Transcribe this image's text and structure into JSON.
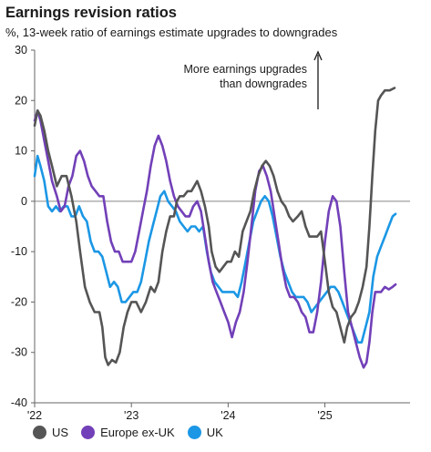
{
  "chart_data": {
    "type": "line",
    "title": "Earnings revision ratios",
    "subtitle": "%, 13-week ratio of earnings estimate upgrades to downgrades",
    "ylim": [
      -40,
      30
    ],
    "xlim": [
      2022.0,
      2025.88
    ],
    "yticks": [
      30,
      20,
      10,
      0,
      -10,
      -20,
      -30,
      -40
    ],
    "xticks": [
      {
        "label": "'22",
        "value": 2022.0
      },
      {
        "label": "'23",
        "value": 2023.0
      },
      {
        "label": "'24",
        "value": 2024.0
      },
      {
        "label": "'25",
        "value": 2025.0
      }
    ],
    "annotation": {
      "line1": "More earnings upgrades",
      "line2": "than downgrades"
    },
    "legend_position": "bottom",
    "series": [
      {
        "name": "US",
        "color": "#555555",
        "points": [
          [
            2022.0,
            15
          ],
          [
            2022.03,
            18
          ],
          [
            2022.06,
            17
          ],
          [
            2022.1,
            14
          ],
          [
            2022.14,
            10
          ],
          [
            2022.18,
            7
          ],
          [
            2022.23,
            3
          ],
          [
            2022.28,
            5
          ],
          [
            2022.33,
            5
          ],
          [
            2022.38,
            1
          ],
          [
            2022.43,
            -4
          ],
          [
            2022.47,
            -10
          ],
          [
            2022.52,
            -17
          ],
          [
            2022.57,
            -20
          ],
          [
            2022.62,
            -22
          ],
          [
            2022.67,
            -22
          ],
          [
            2022.7,
            -25
          ],
          [
            2022.73,
            -31
          ],
          [
            2022.76,
            -32.5
          ],
          [
            2022.8,
            -31.5
          ],
          [
            2022.84,
            -32
          ],
          [
            2022.88,
            -30
          ],
          [
            2022.92,
            -25
          ],
          [
            2022.96,
            -22
          ],
          [
            2023.0,
            -20
          ],
          [
            2023.05,
            -20
          ],
          [
            2023.1,
            -22
          ],
          [
            2023.15,
            -20
          ],
          [
            2023.2,
            -17
          ],
          [
            2023.24,
            -18
          ],
          [
            2023.28,
            -16
          ],
          [
            2023.32,
            -10
          ],
          [
            2023.36,
            -6
          ],
          [
            2023.4,
            -3
          ],
          [
            2023.44,
            -3
          ],
          [
            2023.47,
            0
          ],
          [
            2023.5,
            1
          ],
          [
            2023.54,
            1
          ],
          [
            2023.58,
            2
          ],
          [
            2023.62,
            2
          ],
          [
            2023.65,
            3
          ],
          [
            2023.68,
            4
          ],
          [
            2023.72,
            2
          ],
          [
            2023.76,
            -1
          ],
          [
            2023.8,
            -5
          ],
          [
            2023.83,
            -10
          ],
          [
            2023.87,
            -13
          ],
          [
            2023.91,
            -14
          ],
          [
            2023.95,
            -13
          ],
          [
            2023.99,
            -12
          ],
          [
            2024.03,
            -12
          ],
          [
            2024.07,
            -10
          ],
          [
            2024.11,
            -11
          ],
          [
            2024.15,
            -6
          ],
          [
            2024.19,
            -4
          ],
          [
            2024.23,
            -2
          ],
          [
            2024.27,
            2
          ],
          [
            2024.31,
            5
          ],
          [
            2024.35,
            7
          ],
          [
            2024.39,
            8
          ],
          [
            2024.43,
            7
          ],
          [
            2024.47,
            5
          ],
          [
            2024.51,
            2
          ],
          [
            2024.55,
            0
          ],
          [
            2024.59,
            -1
          ],
          [
            2024.63,
            -3
          ],
          [
            2024.67,
            -4
          ],
          [
            2024.72,
            -3
          ],
          [
            2024.76,
            -2
          ],
          [
            2024.8,
            -5
          ],
          [
            2024.84,
            -7
          ],
          [
            2024.88,
            -7
          ],
          [
            2024.92,
            -7
          ],
          [
            2024.96,
            -6
          ],
          [
            2025.0,
            -12
          ],
          [
            2025.04,
            -18
          ],
          [
            2025.08,
            -21
          ],
          [
            2025.12,
            -22
          ],
          [
            2025.16,
            -25
          ],
          [
            2025.2,
            -28
          ],
          [
            2025.23,
            -25
          ],
          [
            2025.27,
            -23
          ],
          [
            2025.31,
            -22
          ],
          [
            2025.35,
            -20
          ],
          [
            2025.39,
            -17
          ],
          [
            2025.43,
            -13
          ],
          [
            2025.46,
            -5
          ],
          [
            2025.49,
            5
          ],
          [
            2025.52,
            14
          ],
          [
            2025.55,
            20
          ],
          [
            2025.58,
            21
          ],
          [
            2025.62,
            22
          ],
          [
            2025.67,
            22
          ],
          [
            2025.72,
            22.5
          ]
        ]
      },
      {
        "name": "Europe ex-UK",
        "color": "#7240b8",
        "points": [
          [
            2022.0,
            16
          ],
          [
            2022.03,
            18
          ],
          [
            2022.06,
            16
          ],
          [
            2022.1,
            12
          ],
          [
            2022.14,
            8
          ],
          [
            2022.18,
            4
          ],
          [
            2022.23,
            1
          ],
          [
            2022.27,
            -2
          ],
          [
            2022.31,
            -1
          ],
          [
            2022.35,
            3
          ],
          [
            2022.39,
            5
          ],
          [
            2022.43,
            9
          ],
          [
            2022.47,
            10
          ],
          [
            2022.51,
            8
          ],
          [
            2022.55,
            5
          ],
          [
            2022.59,
            3
          ],
          [
            2022.63,
            2
          ],
          [
            2022.67,
            1
          ],
          [
            2022.71,
            1
          ],
          [
            2022.75,
            -4
          ],
          [
            2022.79,
            -8
          ],
          [
            2022.83,
            -10
          ],
          [
            2022.87,
            -10
          ],
          [
            2022.91,
            -12
          ],
          [
            2022.95,
            -12
          ],
          [
            2023.0,
            -12
          ],
          [
            2023.04,
            -10
          ],
          [
            2023.08,
            -6
          ],
          [
            2023.12,
            -2
          ],
          [
            2023.16,
            2
          ],
          [
            2023.2,
            7
          ],
          [
            2023.24,
            11
          ],
          [
            2023.28,
            13
          ],
          [
            2023.32,
            11
          ],
          [
            2023.36,
            8
          ],
          [
            2023.4,
            4
          ],
          [
            2023.44,
            1
          ],
          [
            2023.48,
            -1
          ],
          [
            2023.52,
            -2
          ],
          [
            2023.56,
            -3
          ],
          [
            2023.6,
            -3
          ],
          [
            2023.64,
            -1
          ],
          [
            2023.68,
            0
          ],
          [
            2023.72,
            -2
          ],
          [
            2023.76,
            -7
          ],
          [
            2023.8,
            -12
          ],
          [
            2023.84,
            -16
          ],
          [
            2023.88,
            -18
          ],
          [
            2023.92,
            -20
          ],
          [
            2023.96,
            -22
          ],
          [
            2024.0,
            -24
          ],
          [
            2024.04,
            -27
          ],
          [
            2024.08,
            -24
          ],
          [
            2024.12,
            -22
          ],
          [
            2024.16,
            -18
          ],
          [
            2024.2,
            -12
          ],
          [
            2024.24,
            -5
          ],
          [
            2024.28,
            2
          ],
          [
            2024.32,
            6
          ],
          [
            2024.36,
            7
          ],
          [
            2024.4,
            5
          ],
          [
            2024.44,
            2
          ],
          [
            2024.48,
            -3
          ],
          [
            2024.52,
            -8
          ],
          [
            2024.56,
            -13
          ],
          [
            2024.6,
            -17
          ],
          [
            2024.64,
            -19
          ],
          [
            2024.68,
            -19
          ],
          [
            2024.72,
            -20
          ],
          [
            2024.76,
            -22
          ],
          [
            2024.8,
            -23
          ],
          [
            2024.84,
            -26
          ],
          [
            2024.88,
            -26
          ],
          [
            2024.92,
            -22
          ],
          [
            2024.96,
            -16
          ],
          [
            2025.0,
            -8
          ],
          [
            2025.04,
            -2
          ],
          [
            2025.08,
            1
          ],
          [
            2025.12,
            0
          ],
          [
            2025.16,
            -5
          ],
          [
            2025.2,
            -14
          ],
          [
            2025.24,
            -22
          ],
          [
            2025.28,
            -25
          ],
          [
            2025.32,
            -28
          ],
          [
            2025.36,
            -31
          ],
          [
            2025.4,
            -33
          ],
          [
            2025.43,
            -32
          ],
          [
            2025.46,
            -28
          ],
          [
            2025.49,
            -22
          ],
          [
            2025.52,
            -18
          ],
          [
            2025.55,
            -18
          ],
          [
            2025.58,
            -18
          ],
          [
            2025.62,
            -17
          ],
          [
            2025.66,
            -17.5
          ],
          [
            2025.7,
            -17
          ],
          [
            2025.73,
            -16.5
          ]
        ]
      },
      {
        "name": "UK",
        "color": "#1b97e5",
        "points": [
          [
            2022.0,
            5
          ],
          [
            2022.03,
            9
          ],
          [
            2022.06,
            7
          ],
          [
            2022.1,
            4
          ],
          [
            2022.14,
            -1
          ],
          [
            2022.18,
            -2
          ],
          [
            2022.22,
            -1
          ],
          [
            2022.26,
            -2
          ],
          [
            2022.3,
            -1
          ],
          [
            2022.34,
            -1
          ],
          [
            2022.38,
            -3
          ],
          [
            2022.42,
            -3
          ],
          [
            2022.46,
            -1
          ],
          [
            2022.5,
            -3
          ],
          [
            2022.54,
            -4
          ],
          [
            2022.58,
            -8
          ],
          [
            2022.62,
            -10
          ],
          [
            2022.66,
            -10
          ],
          [
            2022.7,
            -11
          ],
          [
            2022.74,
            -14
          ],
          [
            2022.78,
            -17
          ],
          [
            2022.82,
            -16
          ],
          [
            2022.86,
            -17
          ],
          [
            2022.9,
            -20
          ],
          [
            2022.94,
            -20
          ],
          [
            2022.98,
            -19
          ],
          [
            2023.02,
            -18
          ],
          [
            2023.06,
            -18
          ],
          [
            2023.1,
            -16
          ],
          [
            2023.14,
            -12
          ],
          [
            2023.18,
            -8
          ],
          [
            2023.22,
            -5
          ],
          [
            2023.26,
            -2
          ],
          [
            2023.3,
            1
          ],
          [
            2023.34,
            2
          ],
          [
            2023.38,
            0
          ],
          [
            2023.42,
            -1
          ],
          [
            2023.46,
            -2
          ],
          [
            2023.5,
            -4
          ],
          [
            2023.54,
            -5
          ],
          [
            2023.58,
            -6
          ],
          [
            2023.62,
            -5
          ],
          [
            2023.66,
            -5
          ],
          [
            2023.7,
            -6
          ],
          [
            2023.74,
            -5
          ],
          [
            2023.78,
            -10
          ],
          [
            2023.82,
            -14
          ],
          [
            2023.86,
            -16
          ],
          [
            2023.9,
            -17
          ],
          [
            2023.94,
            -18
          ],
          [
            2023.98,
            -18
          ],
          [
            2024.02,
            -18
          ],
          [
            2024.06,
            -18
          ],
          [
            2024.1,
            -19
          ],
          [
            2024.14,
            -16
          ],
          [
            2024.18,
            -12
          ],
          [
            2024.22,
            -8
          ],
          [
            2024.26,
            -4
          ],
          [
            2024.3,
            -2
          ],
          [
            2024.34,
            0
          ],
          [
            2024.38,
            1
          ],
          [
            2024.42,
            0
          ],
          [
            2024.46,
            -3
          ],
          [
            2024.5,
            -7
          ],
          [
            2024.54,
            -11
          ],
          [
            2024.58,
            -14
          ],
          [
            2024.62,
            -16
          ],
          [
            2024.66,
            -18
          ],
          [
            2024.7,
            -19
          ],
          [
            2024.74,
            -19
          ],
          [
            2024.78,
            -19
          ],
          [
            2024.82,
            -20
          ],
          [
            2024.86,
            -22
          ],
          [
            2024.9,
            -21
          ],
          [
            2024.94,
            -20
          ],
          [
            2024.98,
            -19
          ],
          [
            2025.02,
            -18
          ],
          [
            2025.06,
            -17
          ],
          [
            2025.1,
            -17
          ],
          [
            2025.14,
            -18
          ],
          [
            2025.18,
            -20
          ],
          [
            2025.22,
            -22
          ],
          [
            2025.26,
            -24
          ],
          [
            2025.3,
            -26
          ],
          [
            2025.34,
            -28
          ],
          [
            2025.38,
            -28
          ],
          [
            2025.42,
            -25
          ],
          [
            2025.46,
            -22
          ],
          [
            2025.5,
            -15
          ],
          [
            2025.54,
            -11
          ],
          [
            2025.58,
            -9
          ],
          [
            2025.62,
            -7
          ],
          [
            2025.66,
            -5
          ],
          [
            2025.7,
            -3
          ],
          [
            2025.73,
            -2.5
          ]
        ]
      }
    ]
  }
}
